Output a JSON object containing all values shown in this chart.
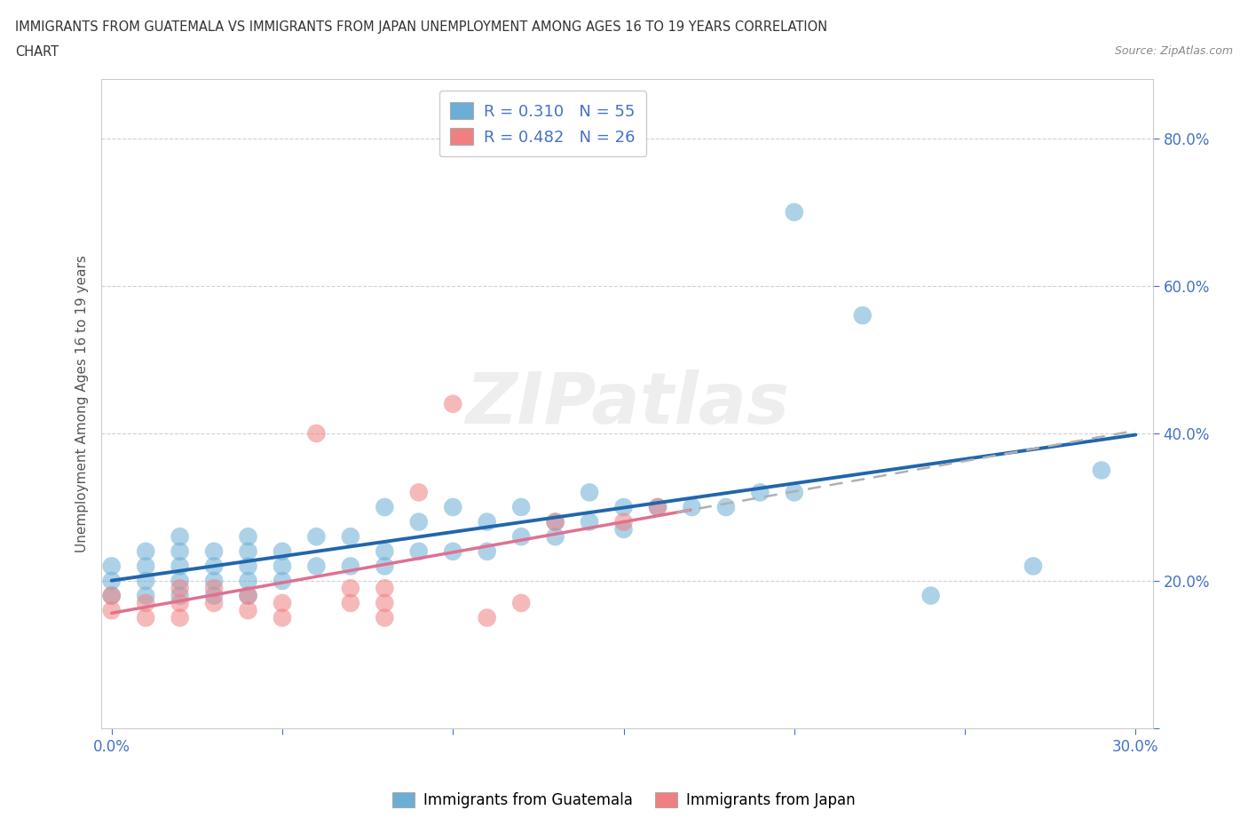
{
  "title_line1": "IMMIGRANTS FROM GUATEMALA VS IMMIGRANTS FROM JAPAN UNEMPLOYMENT AMONG AGES 16 TO 19 YEARS CORRELATION",
  "title_line2": "CHART",
  "source": "Source: ZipAtlas.com",
  "ylabel": "Unemployment Among Ages 16 to 19 years",
  "xlim": [
    -0.003,
    0.305
  ],
  "ylim": [
    0.0,
    0.88
  ],
  "xtick_positions": [
    0.0,
    0.05,
    0.1,
    0.15,
    0.2,
    0.25,
    0.3
  ],
  "xticklabels": [
    "0.0%",
    "",
    "",
    "",
    "",
    "",
    "30.0%"
  ],
  "ytick_positions": [
    0.0,
    0.2,
    0.4,
    0.6,
    0.8
  ],
  "yticklabels": [
    "",
    "20.0%",
    "40.0%",
    "60.0%",
    "80.0%"
  ],
  "R_guatemala": 0.31,
  "N_guatemala": 55,
  "R_japan": 0.482,
  "N_japan": 26,
  "color_guatemala": "#6baed6",
  "color_japan": "#f08080",
  "line_color_guatemala": "#2166ac",
  "line_color_japan": "#e07090",
  "background_color": "#ffffff",
  "grid_color": "#cccccc",
  "tick_color": "#4472c4",
  "watermark": "ZIPatlas",
  "guat_x": [
    0.0,
    0.0,
    0.0,
    0.01,
    0.01,
    0.01,
    0.01,
    0.02,
    0.02,
    0.02,
    0.02,
    0.02,
    0.03,
    0.03,
    0.03,
    0.03,
    0.04,
    0.04,
    0.04,
    0.04,
    0.04,
    0.05,
    0.05,
    0.05,
    0.06,
    0.06,
    0.07,
    0.07,
    0.08,
    0.08,
    0.08,
    0.09,
    0.09,
    0.1,
    0.1,
    0.11,
    0.11,
    0.12,
    0.12,
    0.13,
    0.13,
    0.14,
    0.14,
    0.15,
    0.15,
    0.16,
    0.17,
    0.18,
    0.19,
    0.2,
    0.2,
    0.22,
    0.24,
    0.27,
    0.29
  ],
  "guat_y": [
    0.18,
    0.2,
    0.22,
    0.18,
    0.2,
    0.22,
    0.24,
    0.18,
    0.2,
    0.22,
    0.24,
    0.26,
    0.18,
    0.2,
    0.22,
    0.24,
    0.18,
    0.2,
    0.22,
    0.24,
    0.26,
    0.2,
    0.22,
    0.24,
    0.22,
    0.26,
    0.22,
    0.26,
    0.22,
    0.24,
    0.3,
    0.24,
    0.28,
    0.24,
    0.3,
    0.24,
    0.28,
    0.26,
    0.3,
    0.26,
    0.28,
    0.28,
    0.32,
    0.27,
    0.3,
    0.3,
    0.3,
    0.3,
    0.32,
    0.32,
    0.7,
    0.56,
    0.18,
    0.22,
    0.35
  ],
  "japan_x": [
    0.0,
    0.0,
    0.01,
    0.01,
    0.02,
    0.02,
    0.02,
    0.03,
    0.03,
    0.04,
    0.04,
    0.05,
    0.05,
    0.06,
    0.07,
    0.07,
    0.08,
    0.08,
    0.08,
    0.09,
    0.1,
    0.11,
    0.12,
    0.13,
    0.15,
    0.16
  ],
  "japan_y": [
    0.16,
    0.18,
    0.15,
    0.17,
    0.15,
    0.17,
    0.19,
    0.17,
    0.19,
    0.16,
    0.18,
    0.15,
    0.17,
    0.4,
    0.17,
    0.19,
    0.15,
    0.17,
    0.19,
    0.32,
    0.44,
    0.15,
    0.17,
    0.28,
    0.28,
    0.3
  ]
}
